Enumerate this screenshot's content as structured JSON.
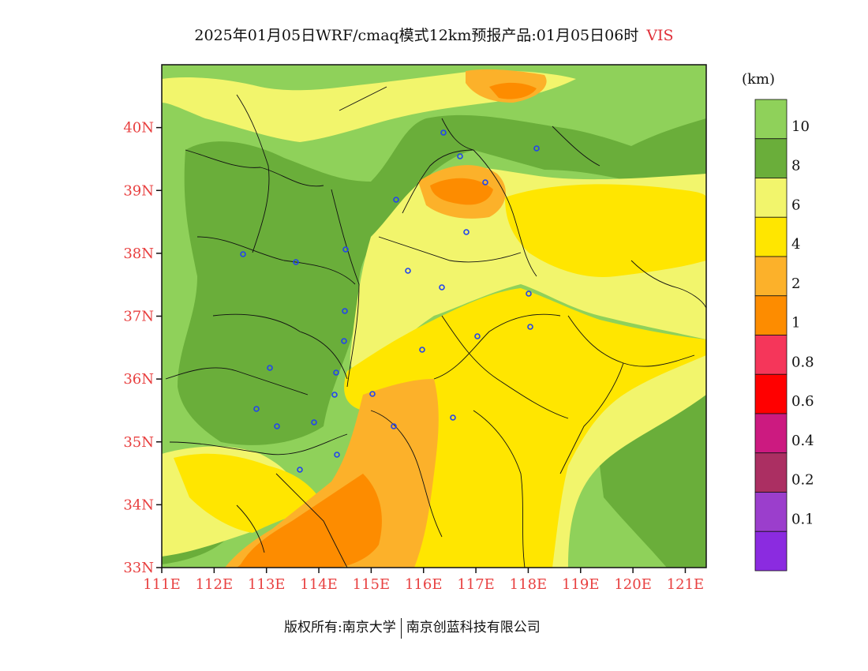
{
  "header": {
    "title": "2025年01月05日WRF/cmaq模式12km预报产品:01月05日06时",
    "variable": "VIS"
  },
  "map": {
    "type": "filled-contour visibility map",
    "lat_ticks": [
      "40N",
      "39N",
      "38N",
      "37N",
      "36N",
      "35N",
      "34N",
      "33N"
    ],
    "lon_ticks": [
      "111E",
      "112E",
      "113E",
      "114E",
      "115E",
      "116E",
      "117E",
      "118E",
      "119E",
      "120E",
      "121E"
    ],
    "lat_range": [
      33,
      41
    ],
    "lon_range": [
      111,
      121.4
    ],
    "axis_color": "#e84040"
  },
  "legend": {
    "unit": "(km)",
    "levels": [
      "10",
      "8",
      "6",
      "4",
      "2",
      "1",
      "0.8",
      "0.6",
      "0.4",
      "0.2",
      "0.1"
    ],
    "colors": [
      "#8fd15a",
      "#6aae3a",
      "#f2f56c",
      "#ffe600",
      "#fcb12a",
      "#fd8c00",
      "#f5365a",
      "#ff0000",
      "#cc1a80",
      "#ab2f62",
      "#9b3ecc",
      "#8b2be0"
    ]
  },
  "footer": {
    "left": "版权所有:南京大学",
    "right": "南京创蓝科技有限公司"
  }
}
